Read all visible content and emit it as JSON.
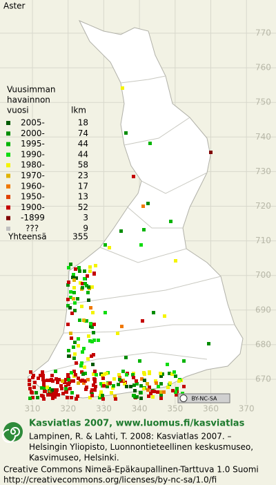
{
  "title": "Aster",
  "legend": {
    "heading": [
      "Vuusimman",
      "havainnon"
    ],
    "col1": "vuosi",
    "col2": "lkm",
    "rows": [
      {
        "label": "2005-",
        "count": 18,
        "color": "#005a00"
      },
      {
        "label": "2000-",
        "count": 74,
        "color": "#008c00"
      },
      {
        "label": "1995-",
        "count": 44,
        "color": "#00b400"
      },
      {
        "label": "1990-",
        "count": 44,
        "color": "#10dc10"
      },
      {
        "label": "1980-",
        "count": 58,
        "color": "#f4f400"
      },
      {
        "label": "1970-",
        "count": 23,
        "color": "#e0b400"
      },
      {
        "label": "1960-",
        "count": 17,
        "color": "#f07800"
      },
      {
        "label": "1950-",
        "count": 13,
        "color": "#e04000"
      },
      {
        "label": "1900-",
        "count": 52,
        "color": "#c40000"
      },
      {
        "label": "-1899",
        "count": 3,
        "color": "#800000"
      },
      {
        "label": "???",
        "count": 9,
        "color": "#c0c0c0"
      }
    ],
    "total_label": "Yhteensä",
    "total": 355
  },
  "grid": {
    "y_labels": [
      770,
      760,
      750,
      740,
      730,
      720,
      710,
      700,
      690,
      680,
      670
    ],
    "x_labels": [
      310,
      320,
      330,
      340,
      350,
      360,
      370
    ]
  },
  "license_badge": "BY-NC-SA",
  "footer": {
    "site": "Kasviatlas 2007, www.luomus.fi/kasviatlas",
    "citation": [
      "Lampinen, R. & Lahti, T. 2008: Kasviatlas 2007. –",
      "Helsingin Yliopisto, Luonnontieteellinen keskusmuseo,",
      "Kasvimuseo, Helsinki."
    ],
    "license": [
      "Creative Commons Nimeä-Epäkaupallinen-Tarttuva 1.0 Suomi",
      "http://creativecommons.org/licenses/by-nc-sa/1.0/fi"
    ]
  }
}
